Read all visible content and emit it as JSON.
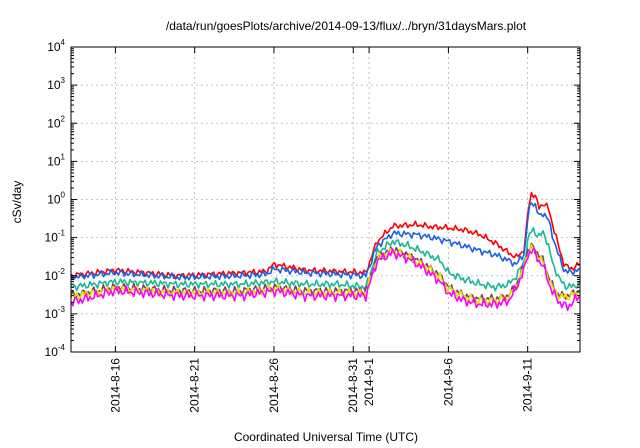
{
  "chart_data": {
    "type": "line",
    "title": "/data/run/goesPlots/archive/2014-09-13/flux/../bryn/31daysMars.plot",
    "xlabel": "Coordinated Universal Time (UTC)",
    "ylabel": "cSv/day",
    "y_scale": "log",
    "ylim": [
      0.0001,
      10000
    ],
    "xlim": [
      13.2,
      45.3
    ],
    "x_unit": "days from 2014-08-01",
    "grid": true,
    "legend": "none",
    "y_ticks": [
      {
        "value": 0.0001,
        "base": "10",
        "exp": "-4"
      },
      {
        "value": 0.001,
        "base": "10",
        "exp": "-3"
      },
      {
        "value": 0.01,
        "base": "10",
        "exp": "-2"
      },
      {
        "value": 0.1,
        "base": "10",
        "exp": "-1"
      },
      {
        "value": 1,
        "base": "10",
        "exp": "0"
      },
      {
        "value": 10,
        "base": "10",
        "exp": "1"
      },
      {
        "value": 100,
        "base": "10",
        "exp": "2"
      },
      {
        "value": 1000,
        "base": "10",
        "exp": "3"
      },
      {
        "value": 10000,
        "base": "10",
        "exp": "4"
      }
    ],
    "x_ticks": [
      {
        "value": 16,
        "label": "2014-8-16"
      },
      {
        "value": 21,
        "label": "2014-8-21"
      },
      {
        "value": 26,
        "label": "2014-8-26"
      },
      {
        "value": 31,
        "label": "2014-8-31"
      },
      {
        "value": 32,
        "label": "2014-9-1"
      },
      {
        "value": 37,
        "label": "2014-9-6"
      },
      {
        "value": 42,
        "label": "2014-9-11"
      }
    ],
    "series": [
      {
        "color": "#ff0000",
        "x": [
          13.2,
          16,
          20,
          24,
          25.5,
          26,
          28,
          30,
          31.8,
          32.5,
          33.5,
          35,
          36,
          37,
          38,
          39,
          40,
          40.8,
          41.3,
          41.8,
          42,
          42.2,
          42.5,
          42.7,
          43,
          43.3,
          43.6,
          44,
          44.3,
          44.7,
          45.3
        ],
        "values": [
          0.01,
          0.014,
          0.01,
          0.012,
          0.013,
          0.02,
          0.014,
          0.013,
          0.012,
          0.08,
          0.2,
          0.22,
          0.19,
          0.18,
          0.16,
          0.12,
          0.07,
          0.04,
          0.03,
          0.05,
          0.4,
          1.5,
          1.2,
          0.6,
          0.8,
          0.6,
          0.2,
          0.05,
          0.02,
          0.015,
          0.02
        ]
      },
      {
        "color": "#1a5fe6",
        "x": [
          13.2,
          16,
          20,
          24,
          25.5,
          26,
          28,
          30,
          31.8,
          32.5,
          33.5,
          35,
          36,
          37,
          38,
          39,
          40,
          40.8,
          41.3,
          41.8,
          42,
          42.2,
          42.5,
          42.7,
          43,
          43.3,
          43.6,
          44,
          44.3,
          44.7,
          45.3
        ],
        "values": [
          0.009,
          0.012,
          0.009,
          0.01,
          0.011,
          0.015,
          0.012,
          0.011,
          0.01,
          0.06,
          0.13,
          0.12,
          0.1,
          0.08,
          0.06,
          0.045,
          0.035,
          0.025,
          0.02,
          0.04,
          0.3,
          0.9,
          0.7,
          0.35,
          0.45,
          0.3,
          0.1,
          0.03,
          0.014,
          0.012,
          0.015
        ]
      },
      {
        "color": "#18b894",
        "x": [
          13.2,
          16,
          20,
          24,
          26,
          28,
          30,
          31.8,
          32.5,
          33.5,
          34.5,
          35.5,
          36.5,
          37,
          38,
          39,
          40,
          40.8,
          41.3,
          41.8,
          42,
          42.3,
          42.7,
          43,
          43.3,
          43.6,
          44,
          44.5,
          45.3
        ],
        "values": [
          0.005,
          0.007,
          0.006,
          0.006,
          0.007,
          0.006,
          0.006,
          0.005,
          0.04,
          0.08,
          0.06,
          0.04,
          0.025,
          0.012,
          0.008,
          0.006,
          0.005,
          0.006,
          0.01,
          0.025,
          0.08,
          0.18,
          0.1,
          0.15,
          0.06,
          0.02,
          0.008,
          0.005,
          0.006
        ]
      },
      {
        "color": "#7a3f68",
        "x": [
          13.2,
          16,
          20,
          24,
          26,
          28,
          30,
          31.8,
          32.5,
          33.5,
          34.5,
          35.5,
          36.5,
          37,
          38,
          39,
          40,
          40.8,
          41.3,
          41.8,
          42,
          42.3,
          42.7,
          43,
          43.3,
          43.6,
          44,
          44.5,
          45.3
        ],
        "values": [
          0.003,
          0.005,
          0.004,
          0.004,
          0.005,
          0.004,
          0.004,
          0.004,
          0.03,
          0.05,
          0.035,
          0.02,
          0.01,
          0.005,
          0.003,
          0.0025,
          0.0025,
          0.003,
          0.006,
          0.02,
          0.045,
          0.06,
          0.035,
          0.025,
          0.01,
          0.005,
          0.003,
          0.003,
          0.004
        ]
      },
      {
        "color": "#e8e000",
        "x": [
          13.2,
          16,
          20,
          24,
          26,
          28,
          30,
          31.8,
          32.5,
          33.5,
          34.5,
          35.5,
          36.5,
          37,
          38,
          39,
          40,
          40.8,
          41.3,
          41.8,
          42,
          42.3,
          42.7,
          43,
          43.3,
          43.6,
          44,
          44.5,
          45.3
        ],
        "values": [
          0.0028,
          0.0045,
          0.0035,
          0.0035,
          0.0045,
          0.0035,
          0.0035,
          0.0035,
          0.028,
          0.045,
          0.03,
          0.018,
          0.009,
          0.0045,
          0.0028,
          0.0022,
          0.0022,
          0.0028,
          0.0055,
          0.018,
          0.04,
          0.055,
          0.03,
          0.022,
          0.009,
          0.0045,
          0.0028,
          0.0028,
          0.0035
        ]
      },
      {
        "color": "#ff00ff",
        "x": [
          13.2,
          16,
          20,
          24,
          26,
          28,
          30,
          31.8,
          32.5,
          33.5,
          34.5,
          35.5,
          36.5,
          37,
          38,
          39,
          40,
          40.8,
          41.3,
          41.8,
          42,
          42.3,
          42.7,
          43,
          43.3,
          43.6,
          44,
          44.5,
          45.3
        ],
        "values": [
          0.002,
          0.004,
          0.003,
          0.003,
          0.004,
          0.003,
          0.003,
          0.003,
          0.025,
          0.04,
          0.028,
          0.015,
          0.007,
          0.0035,
          0.0022,
          0.0018,
          0.0018,
          0.0022,
          0.005,
          0.015,
          0.035,
          0.05,
          0.025,
          0.018,
          0.007,
          0.0035,
          0.002,
          0.0015,
          0.003
        ]
      }
    ]
  }
}
